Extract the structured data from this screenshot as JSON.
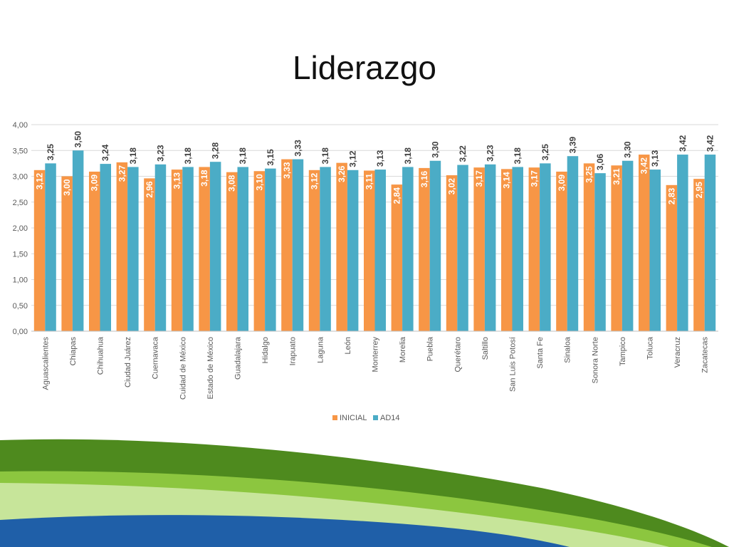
{
  "slide": {
    "title": "Liderazgo"
  },
  "colors": {
    "inicial": "#F79646",
    "ad14": "#4BACC6",
    "grid": "#D9D9D9",
    "axis_text": "#595959",
    "label_text": "#404040",
    "wave_dark_green": "#4E8A1E",
    "wave_mid_green": "#8CC63F",
    "wave_light_green": "#C7E59A",
    "wave_blue": "#1F5FA8"
  },
  "chart_data": {
    "type": "bar",
    "categories": [
      "Aguascalientes",
      "Chiapas",
      "Chihuahua",
      "Ciudad Juárez",
      "Cuernavaca",
      "Cuidad de México",
      "Estado de México",
      "Guadalajara",
      "Hidalgo",
      "Irapuato",
      "Laguna",
      "León",
      "Monterrey",
      "Morelia",
      "Puebla",
      "Querétaro",
      "Saltillo",
      "San Luis Potosí",
      "Santa Fe",
      "Sinaloa",
      "Sonora Norte",
      "Tampico",
      "Toluca",
      "Veracruz",
      "Zacatecas"
    ],
    "series": [
      {
        "name": "INICIAL",
        "values": [
          3.12,
          3.0,
          3.09,
          3.27,
          2.96,
          3.13,
          3.18,
          3.08,
          3.1,
          3.33,
          3.12,
          3.26,
          3.11,
          2.84,
          3.16,
          3.02,
          3.17,
          3.14,
          3.17,
          3.09,
          3.25,
          3.21,
          3.42,
          2.83,
          2.95
        ]
      },
      {
        "name": "AD14",
        "values": [
          3.25,
          3.5,
          3.24,
          3.18,
          3.23,
          3.18,
          3.28,
          3.18,
          3.15,
          3.33,
          3.18,
          3.12,
          3.13,
          3.18,
          3.3,
          3.22,
          3.23,
          3.18,
          3.25,
          3.39,
          3.06,
          3.3,
          3.13,
          3.42,
          3.42
        ]
      }
    ],
    "yticks": [
      "0,00",
      "0,50",
      "1,00",
      "1,50",
      "2,00",
      "2,50",
      "3,00",
      "3,50",
      "4,00"
    ],
    "ylim": [
      0,
      4
    ],
    "decimal_separator": ",",
    "grid": true,
    "legend": "bottom",
    "data_labels": true
  }
}
